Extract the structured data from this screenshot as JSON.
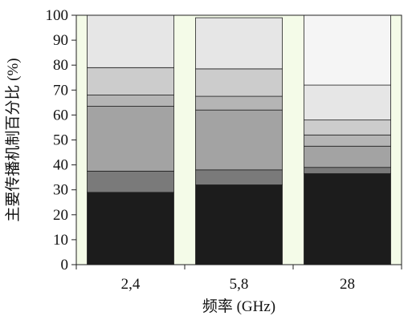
{
  "chart_data": {
    "type": "bar",
    "stacked": true,
    "title": "",
    "xlabel": "频率 (GHz)",
    "ylabel": "主要传播机制百分比 (%)",
    "ylim": [
      0,
      100
    ],
    "yticks": [
      "0",
      "10",
      "20",
      "30",
      "40",
      "50",
      "60",
      "70",
      "80",
      "90",
      "100"
    ],
    "categories": [
      "2,4",
      "5,8",
      "28"
    ],
    "grid": false,
    "legend": "none",
    "plot_background": "#f4fbe8",
    "series": [
      {
        "color": "#1c1c1c",
        "values": [
          29,
          32,
          36.5
        ]
      },
      {
        "color": "#7a7a7a",
        "values": [
          8.5,
          6,
          2.5
        ]
      },
      {
        "color": "#a3a3a3",
        "values": [
          26,
          24,
          8.5
        ]
      },
      {
        "color": "#b5b5b5",
        "values": [
          4.5,
          5.5,
          4.5
        ]
      },
      {
        "color": "#cccccc",
        "values": [
          11,
          11,
          6
        ]
      },
      {
        "color": "#e6e6e6",
        "values": [
          21,
          20.5,
          14
        ]
      },
      {
        "color": "#f5f5f5",
        "values": [
          0,
          0,
          28
        ]
      }
    ]
  }
}
